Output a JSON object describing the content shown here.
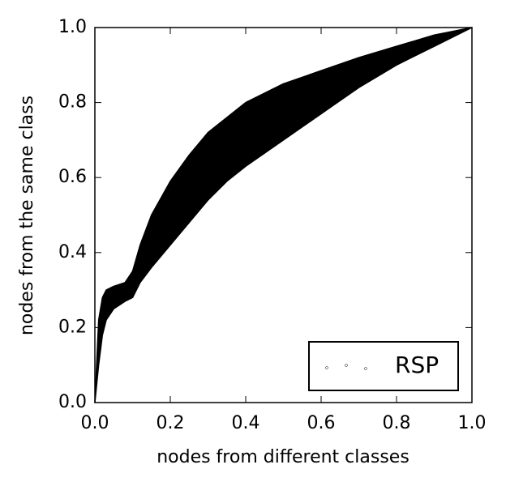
{
  "chart_data": {
    "type": "band",
    "xlabel": "nodes from different classes",
    "ylabel": "nodes from the same class",
    "x": [
      0,
      0.01,
      0.02,
      0.03,
      0.05,
      0.08,
      0.1,
      0.12,
      0.15,
      0.2,
      0.25,
      0.3,
      0.35,
      0.4,
      0.5,
      0.6,
      0.7,
      0.8,
      0.9,
      1.0
    ],
    "series": [
      {
        "name": "RSP",
        "color": "#000000",
        "upper": [
          0,
          0.22,
          0.28,
          0.3,
          0.31,
          0.32,
          0.35,
          0.42,
          0.5,
          0.59,
          0.66,
          0.72,
          0.76,
          0.8,
          0.85,
          0.885,
          0.92,
          0.95,
          0.98,
          1.0
        ],
        "lower": [
          0,
          0.1,
          0.18,
          0.22,
          0.25,
          0.27,
          0.28,
          0.32,
          0.36,
          0.42,
          0.48,
          0.54,
          0.59,
          0.63,
          0.7,
          0.77,
          0.84,
          0.9,
          0.95,
          1.0
        ]
      }
    ],
    "xlim": [
      0,
      1
    ],
    "ylim": [
      0,
      1
    ],
    "xticks": [
      {
        "value": 0,
        "label": "0.0"
      },
      0.2,
      0.4,
      0.6,
      0.8,
      {
        "value": 1,
        "label": "1.0"
      }
    ],
    "yticks": [
      {
        "value": 0,
        "label": "0.0"
      },
      0.2,
      0.4,
      0.6,
      0.8,
      {
        "value": 1,
        "label": "1.0"
      }
    ],
    "legend": "lower right"
  }
}
